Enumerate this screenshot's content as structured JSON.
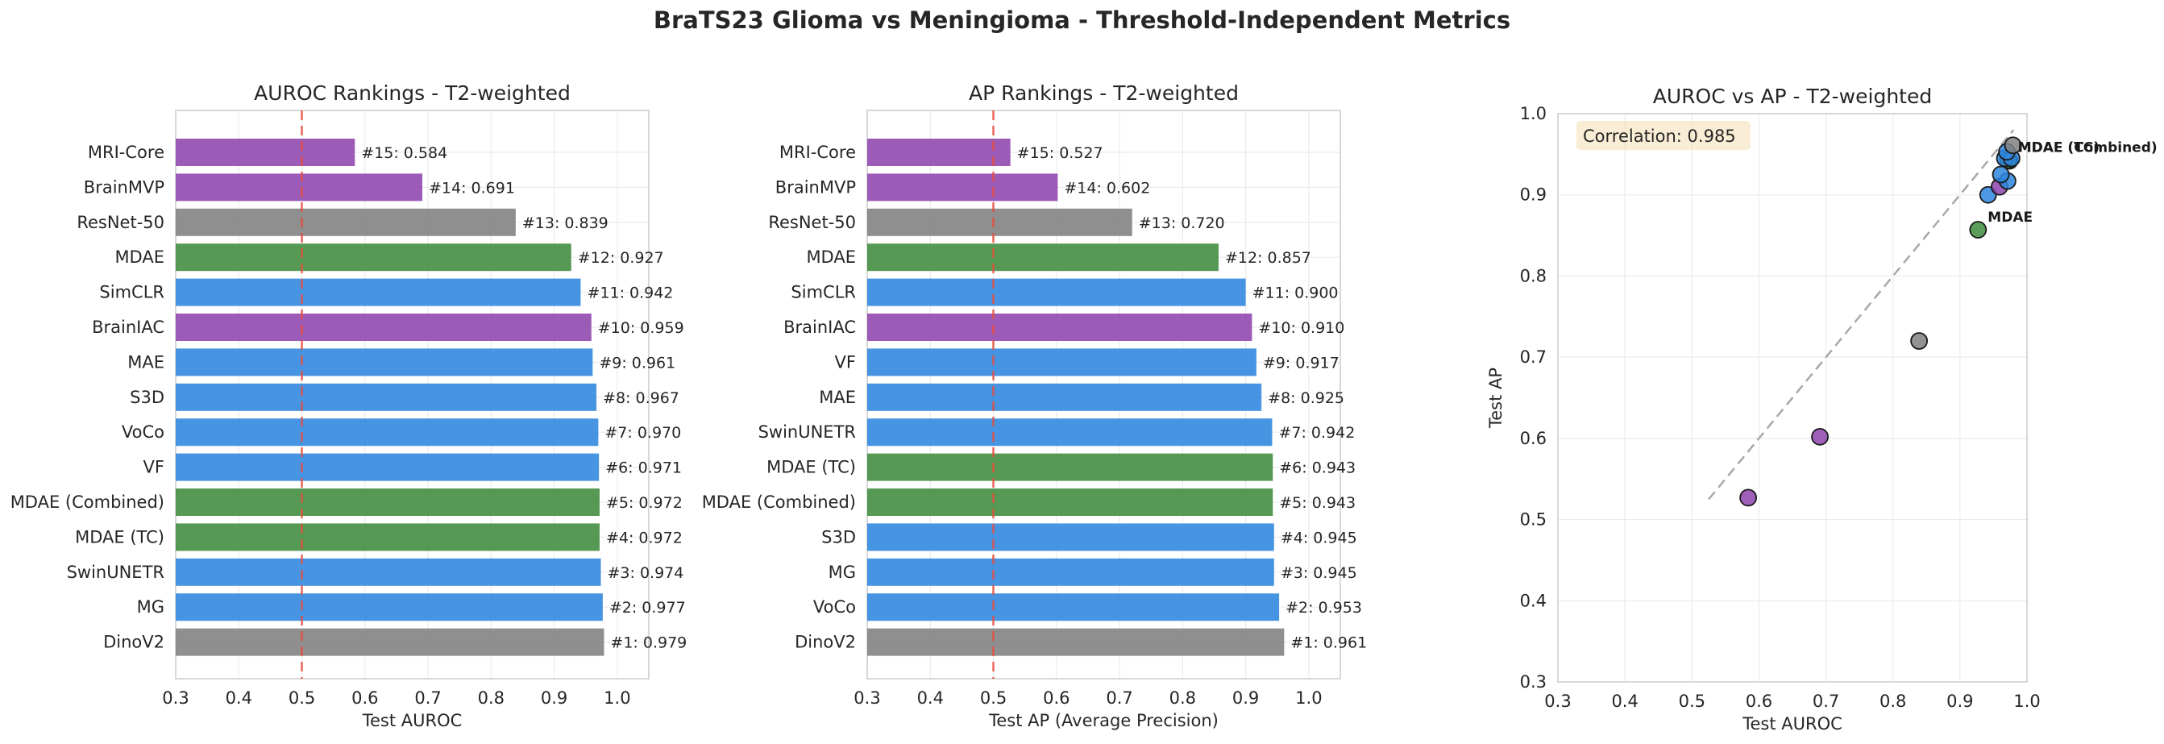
{
  "suptitle": "BraTS23 Glioma vs Meningioma - Threshold-Independent Metrics",
  "colors": {
    "purple": "#8e44ad",
    "gray": "#808080",
    "green": "#3d8b3d",
    "blue": "#2e86de",
    "threshold": "#e74c3c",
    "grid": "#ebebeb",
    "axis": "#cccccc"
  },
  "chart_data": [
    {
      "type": "bar",
      "orientation": "horizontal",
      "title": "AUROC Rankings - T2-weighted",
      "xlabel": "Test AUROC",
      "ylabel": "",
      "xlim": [
        0.3,
        1.05
      ],
      "xticks": [
        "0.3",
        "0.4",
        "0.5",
        "0.6",
        "0.7",
        "0.8",
        "0.9",
        "1.0"
      ],
      "reference_line": 0.5,
      "categories": [
        "MRI-Core",
        "BrainMVP",
        "ResNet-50",
        "MDAE",
        "SimCLR",
        "BrainIAC",
        "MAE",
        "S3D",
        "VoCo",
        "VF",
        "MDAE (Combined)",
        "MDAE (TC)",
        "SwinUNETR",
        "MG",
        "DinoV2"
      ],
      "values": [
        0.584,
        0.691,
        0.839,
        0.927,
        0.942,
        0.959,
        0.961,
        0.967,
        0.97,
        0.971,
        0.972,
        0.972,
        0.974,
        0.977,
        0.979
      ],
      "labels": [
        "#15: 0.584",
        "#14: 0.691",
        "#13: 0.839",
        "#12: 0.927",
        "#11: 0.942",
        "#10: 0.959",
        "#9: 0.961",
        "#8: 0.967",
        "#7: 0.970",
        "#6: 0.971",
        "#5: 0.972",
        "#4: 0.972",
        "#3: 0.974",
        "#2: 0.977",
        "#1: 0.979"
      ],
      "colors": [
        "purple",
        "purple",
        "gray",
        "green",
        "blue",
        "purple",
        "blue",
        "blue",
        "blue",
        "blue",
        "green",
        "green",
        "blue",
        "blue",
        "gray"
      ]
    },
    {
      "type": "bar",
      "orientation": "horizontal",
      "title": "AP Rankings - T2-weighted",
      "xlabel": "Test AP (Average Precision)",
      "ylabel": "",
      "xlim": [
        0.3,
        1.05
      ],
      "xticks": [
        "0.3",
        "0.4",
        "0.5",
        "0.6",
        "0.7",
        "0.8",
        "0.9",
        "1.0"
      ],
      "reference_line": 0.5,
      "categories": [
        "MRI-Core",
        "BrainMVP",
        "ResNet-50",
        "MDAE",
        "SimCLR",
        "BrainIAC",
        "VF",
        "MAE",
        "SwinUNETR",
        "MDAE (TC)",
        "MDAE (Combined)",
        "S3D",
        "MG",
        "VoCo",
        "DinoV2"
      ],
      "values": [
        0.527,
        0.602,
        0.72,
        0.857,
        0.9,
        0.91,
        0.917,
        0.925,
        0.942,
        0.943,
        0.943,
        0.945,
        0.945,
        0.953,
        0.961
      ],
      "labels": [
        "#15: 0.527",
        "#14: 0.602",
        "#13: 0.720",
        "#12: 0.857",
        "#11: 0.900",
        "#10: 0.910",
        "#9: 0.917",
        "#8: 0.925",
        "#7: 0.942",
        "#6: 0.943",
        "#5: 0.943",
        "#4: 0.945",
        "#3: 0.945",
        "#2: 0.953",
        "#1: 0.961"
      ],
      "colors": [
        "purple",
        "purple",
        "gray",
        "green",
        "blue",
        "purple",
        "blue",
        "blue",
        "blue",
        "green",
        "green",
        "blue",
        "blue",
        "blue",
        "gray"
      ]
    },
    {
      "type": "scatter",
      "title": "AUROC vs AP - T2-weighted",
      "xlabel": "Test AUROC",
      "ylabel": "Test AP",
      "xlim": [
        0.3,
        1.0
      ],
      "ylim": [
        0.3,
        1.0
      ],
      "xticks": [
        "0.3",
        "0.4",
        "0.5",
        "0.6",
        "0.7",
        "0.8",
        "0.9",
        "1.0"
      ],
      "yticks": [
        "0.3",
        "0.4",
        "0.5",
        "0.6",
        "0.7",
        "0.8",
        "0.9",
        "1.0"
      ],
      "annotation": "Correlation: 0.985",
      "diagonal": [
        [
          0.525,
          0.525
        ],
        [
          0.98,
          0.98
        ]
      ],
      "points": [
        {
          "x": 0.584,
          "y": 0.527,
          "color": "purple"
        },
        {
          "x": 0.691,
          "y": 0.602,
          "color": "purple"
        },
        {
          "x": 0.839,
          "y": 0.72,
          "color": "gray"
        },
        {
          "x": 0.927,
          "y": 0.857,
          "color": "green",
          "label": "MDAE"
        },
        {
          "x": 0.942,
          "y": 0.9,
          "color": "blue"
        },
        {
          "x": 0.959,
          "y": 0.91,
          "color": "purple"
        },
        {
          "x": 0.971,
          "y": 0.917,
          "color": "blue"
        },
        {
          "x": 0.961,
          "y": 0.925,
          "color": "blue"
        },
        {
          "x": 0.974,
          "y": 0.942,
          "color": "blue"
        },
        {
          "x": 0.972,
          "y": 0.943,
          "color": "green",
          "label": "MDAE (TC)"
        },
        {
          "x": 0.972,
          "y": 0.943,
          "color": "green",
          "label": "MDAE (Combined)"
        },
        {
          "x": 0.967,
          "y": 0.945,
          "color": "blue"
        },
        {
          "x": 0.977,
          "y": 0.945,
          "color": "blue"
        },
        {
          "x": 0.97,
          "y": 0.953,
          "color": "blue"
        },
        {
          "x": 0.979,
          "y": 0.961,
          "color": "gray"
        }
      ]
    }
  ]
}
